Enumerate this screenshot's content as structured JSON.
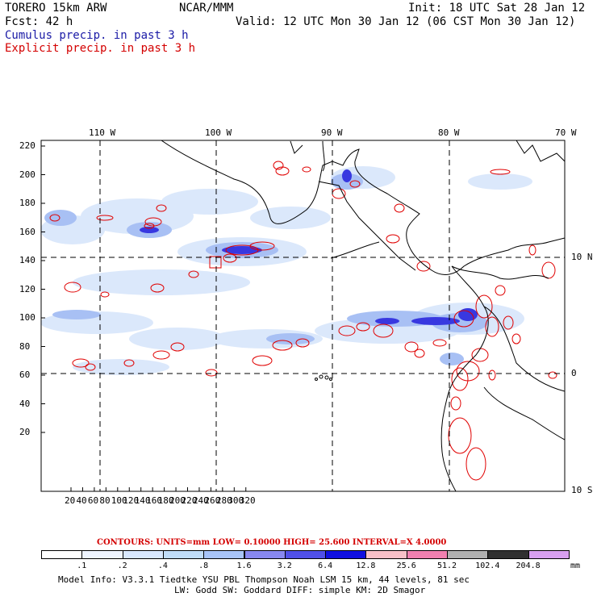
{
  "header": {
    "model": "TORERO  15km ARW",
    "org": "NCAR/MMM",
    "init": "Init: 18 UTC Sat 28 Jan 12",
    "fcst": "Fcst:   42 h",
    "valid": "Valid: 12 UTC Mon 30 Jan 12 (06 CST Mon 30 Jan 12)",
    "cumulus": "Cumulus precip. in past 3 h",
    "explicit": "Explicit precip. in past 3 h"
  },
  "axes": {
    "lon_labels": [
      "110 W",
      "100 W",
      "90 W",
      "80 W",
      "70 W"
    ],
    "lat_labels": [
      "10 N",
      "0",
      "10 S"
    ],
    "y_ticks": [
      "220",
      "200",
      "180",
      "160",
      "140",
      "120",
      "100",
      "80",
      "60",
      "40",
      "20"
    ],
    "x_ticks": [
      "20",
      "40",
      "60",
      "80",
      "100",
      "120",
      "140",
      "160",
      "180",
      "200",
      "220",
      "240",
      "260",
      "280",
      "300",
      "320"
    ]
  },
  "contours_line": {
    "text": "CONTOURS:  UNITS=mm  LOW= 0.10000      HIGH=  25.600      INTERVAL=X  4.0000"
  },
  "legend": {
    "values": [
      ".1",
      ".2",
      ".4",
      ".8",
      "1.6",
      "3.2",
      "6.4",
      "12.8",
      "25.6",
      "51.2",
      "102.4",
      "204.8"
    ],
    "units": "mm",
    "colors": [
      "#ffffff",
      "#eef4ff",
      "#d8e8ff",
      "#c0dcf8",
      "#a8c4f8",
      "#8888f0",
      "#5050e8",
      "#1010e0",
      "#f8c0c8",
      "#f080b0",
      "#b0b0b0",
      "#303030",
      "#d8a0f0"
    ]
  },
  "footer": {
    "line1": "Model Info: V3.3.1    Tiedtke YSU PBL   Thompson    Noah LSM  15 km,    44 levels,    81 sec",
    "line2": "LW: Godd SW: Goddard DIFF: simple KM: 2D Smagor"
  }
}
